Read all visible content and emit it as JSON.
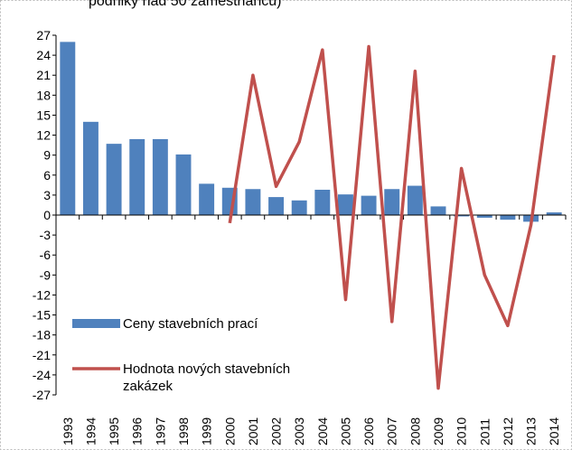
{
  "chart_data": {
    "type": "bar_line",
    "title": "podniky nad 50 zaměstnanců)",
    "categories": [
      "1993",
      "1994",
      "1995",
      "1996",
      "1997",
      "1998",
      "1999",
      "2000",
      "2001",
      "2002",
      "2003",
      "2004",
      "2005",
      "2006",
      "2007",
      "2008",
      "2009",
      "2010",
      "2011",
      "2012",
      "2013",
      "2014"
    ],
    "series": [
      {
        "name": "Ceny stavebních prací",
        "type": "bar",
        "color": "#4f81bd",
        "values": [
          26,
          14,
          10.7,
          11.4,
          11.4,
          9.1,
          4.7,
          4.1,
          3.9,
          2.7,
          2.2,
          3.8,
          3.1,
          2.9,
          3.9,
          4.4,
          1.3,
          -0.2,
          -0.4,
          -0.7,
          -1.0,
          0.4
        ]
      },
      {
        "name": "Hodnota nových stavebních zakázek",
        "type": "line",
        "color": "#c0504d",
        "values": [
          null,
          null,
          null,
          null,
          null,
          null,
          null,
          -1.2,
          21,
          4.3,
          11,
          24.8,
          -12.7,
          25.3,
          -16,
          21.6,
          -26,
          7,
          -9,
          -16.6,
          -1.5,
          24
        ]
      }
    ],
    "ylim": [
      -27,
      27
    ],
    "yticks": [
      -27,
      -24,
      -21,
      -18,
      -15,
      -12,
      -9,
      -6,
      -3,
      0,
      3,
      6,
      9,
      12,
      15,
      18,
      21,
      24,
      27
    ],
    "legend": "bottom-left"
  }
}
